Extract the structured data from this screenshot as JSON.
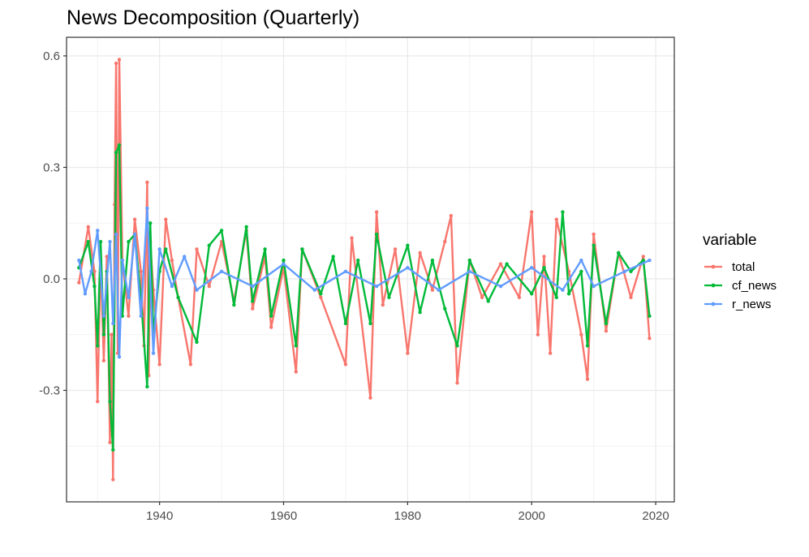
{
  "chart_data": {
    "type": "line",
    "title": "News Decomposition (Quarterly)",
    "xlabel": "",
    "ylabel": "",
    "xlim": [
      1925,
      2023
    ],
    "ylim": [
      -0.6,
      0.65
    ],
    "x_ticks": [
      1940,
      1960,
      1980,
      2000,
      2020
    ],
    "x_tick_labels": [
      "1940",
      "1960",
      "1980",
      "2000",
      "2020"
    ],
    "y_ticks": [
      -0.3,
      0.0,
      0.3,
      0.6
    ],
    "y_tick_labels": [
      "-0.3",
      "0.0",
      "0.3",
      "0.6"
    ],
    "grid": true,
    "legend": {
      "title": "variable",
      "position": "right"
    },
    "series": [
      {
        "name": "total",
        "color": "#F8766D",
        "x": [
          1927.0,
          1928.5,
          1929.5,
          1930.0,
          1930.5,
          1931.0,
          1931.5,
          1932.0,
          1932.25,
          1932.5,
          1932.75,
          1933.0,
          1933.25,
          1933.5,
          1934.0,
          1935.0,
          1936.0,
          1937.0,
          1937.5,
          1938.0,
          1938.25,
          1938.5,
          1939.0,
          1940.0,
          1941.0,
          1942.0,
          1943.0,
          1945.0,
          1946.0,
          1948.0,
          1950.0,
          1952.0,
          1954.0,
          1955.0,
          1957.0,
          1958.0,
          1960.0,
          1962.0,
          1963.0,
          1966.0,
          1970.0,
          1971.0,
          1974.0,
          1975.0,
          1976.0,
          1978.0,
          1980.0,
          1982.0,
          1984.0,
          1986.0,
          1987.0,
          1988.0,
          1990.0,
          1992.0,
          1995.0,
          1998.0,
          2000.0,
          2001.0,
          2002.0,
          2003.0,
          2004.0,
          2006.0,
          2008.0,
          2009.0,
          2010.0,
          2012.0,
          2014.0,
          2016.0,
          2018.0,
          2019.0
        ],
        "y": [
          -0.01,
          0.14,
          0.02,
          -0.33,
          0.05,
          -0.22,
          0.06,
          -0.44,
          -0.15,
          -0.54,
          0.2,
          0.58,
          -0.2,
          0.59,
          0.05,
          -0.1,
          0.16,
          0.02,
          -0.18,
          0.26,
          -0.26,
          0.1,
          -0.03,
          -0.23,
          0.16,
          0.05,
          -0.05,
          -0.23,
          0.08,
          -0.02,
          0.1,
          -0.06,
          0.13,
          -0.08,
          0.06,
          -0.13,
          0.03,
          -0.25,
          0.08,
          -0.05,
          -0.23,
          0.11,
          -0.32,
          0.18,
          -0.07,
          0.08,
          -0.2,
          0.07,
          -0.03,
          0.1,
          0.17,
          -0.28,
          0.05,
          -0.05,
          0.04,
          -0.05,
          0.18,
          -0.15,
          0.06,
          -0.2,
          0.16,
          0.02,
          -0.15,
          -0.27,
          0.12,
          -0.14,
          0.07,
          -0.05,
          0.06,
          -0.16
        ]
      },
      {
        "name": "cf_news",
        "color": "#00BA38",
        "x": [
          1927.0,
          1928.5,
          1929.5,
          1930.0,
          1930.5,
          1931.0,
          1931.5,
          1932.0,
          1932.5,
          1933.0,
          1933.5,
          1934.0,
          1935.0,
          1936.0,
          1937.0,
          1938.0,
          1938.5,
          1939.0,
          1940.0,
          1941.0,
          1943.0,
          1946.0,
          1948.0,
          1950.0,
          1952.0,
          1954.0,
          1955.0,
          1957.0,
          1958.0,
          1960.0,
          1962.0,
          1963.0,
          1966.0,
          1968.0,
          1970.0,
          1972.0,
          1974.0,
          1975.0,
          1977.0,
          1980.0,
          1982.0,
          1984.0,
          1986.0,
          1988.0,
          1990.0,
          1993.0,
          1996.0,
          2000.0,
          2002.0,
          2004.0,
          2005.0,
          2006.0,
          2008.0,
          2009.0,
          2010.0,
          2012.0,
          2014.0,
          2016.0,
          2018.0,
          2019.0
        ],
        "y": [
          0.03,
          0.1,
          -0.02,
          -0.18,
          0.1,
          -0.15,
          0.02,
          -0.33,
          -0.46,
          0.34,
          0.36,
          -0.1,
          0.1,
          0.12,
          -0.05,
          -0.29,
          0.15,
          -0.15,
          0.02,
          0.08,
          -0.05,
          -0.17,
          0.09,
          0.13,
          -0.07,
          0.14,
          -0.06,
          0.08,
          -0.1,
          0.05,
          -0.18,
          0.08,
          -0.04,
          0.06,
          -0.12,
          0.05,
          -0.12,
          0.12,
          -0.05,
          0.09,
          -0.09,
          0.05,
          -0.08,
          -0.18,
          0.05,
          -0.06,
          0.04,
          -0.04,
          0.03,
          -0.05,
          0.18,
          -0.04,
          0.02,
          -0.18,
          0.09,
          -0.12,
          0.07,
          0.02,
          0.05,
          -0.1
        ]
      },
      {
        "name": "r_news",
        "color": "#619CFF",
        "x": [
          1927.0,
          1928.0,
          1929.0,
          1930.0,
          1931.0,
          1932.0,
          1932.5,
          1933.0,
          1933.5,
          1934.0,
          1935.0,
          1936.0,
          1937.0,
          1938.0,
          1939.0,
          1940.0,
          1942.0,
          1944.0,
          1946.0,
          1950.0,
          1955.0,
          1960.0,
          1965.0,
          1970.0,
          1975.0,
          1980.0,
          1985.0,
          1990.0,
          1995.0,
          2000.0,
          2005.0,
          2008.0,
          2010.0,
          2015.0,
          2019.0
        ],
        "y": [
          0.05,
          -0.04,
          0.02,
          0.13,
          -0.1,
          0.1,
          -0.12,
          0.12,
          -0.21,
          0.05,
          -0.05,
          0.12,
          -0.1,
          0.19,
          -0.2,
          0.08,
          -0.02,
          0.06,
          -0.03,
          0.02,
          -0.02,
          0.04,
          -0.03,
          0.02,
          -0.02,
          0.03,
          -0.03,
          0.02,
          -0.02,
          0.03,
          -0.03,
          0.05,
          -0.02,
          0.02,
          0.05
        ]
      }
    ]
  }
}
